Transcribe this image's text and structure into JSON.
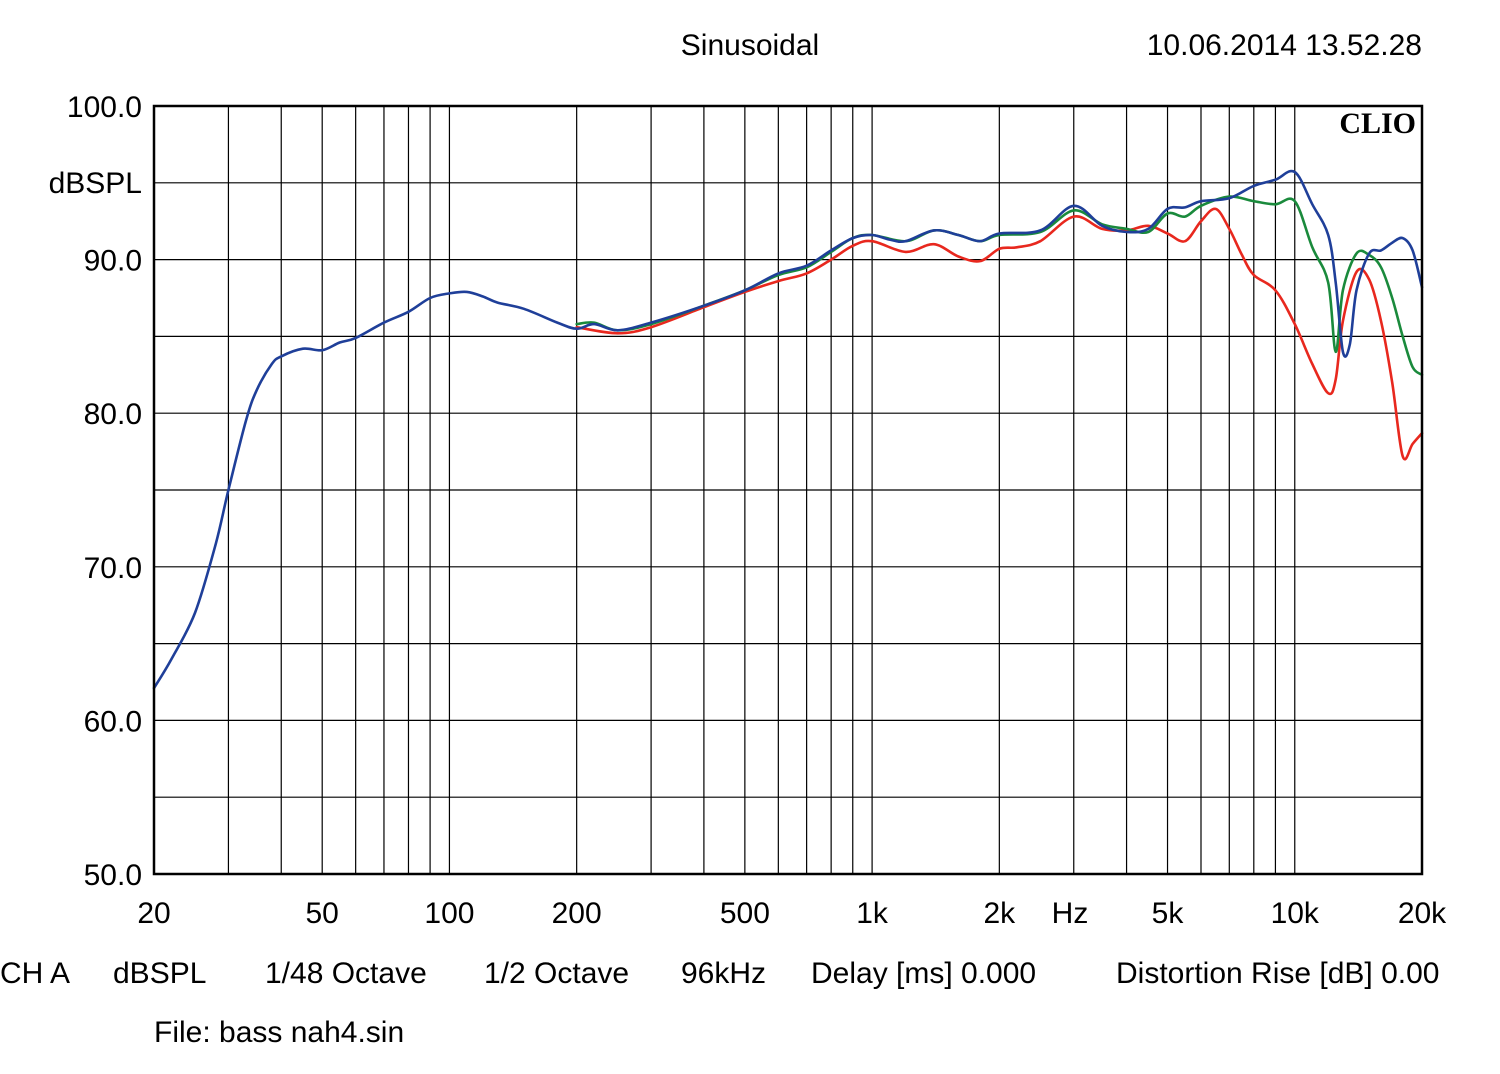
{
  "chart_data": {
    "type": "line",
    "title": "Sinusoidal",
    "timestamp": "10.06.2014 13.52.28",
    "logo": "CLIO",
    "xscale": "log",
    "xlim": [
      20,
      20000
    ],
    "ylim": [
      50,
      100
    ],
    "ylabel": "dBSPL",
    "xunit": "Hz",
    "grid": true,
    "y_ticks": [
      "100.0",
      "90.0",
      "80.0",
      "70.0",
      "60.0",
      "50.0"
    ],
    "y_tick_values": [
      100,
      90,
      80,
      70,
      60,
      50
    ],
    "x_ticks": [
      "20",
      "50",
      "100",
      "200",
      "500",
      "1k",
      "2k",
      "5k",
      "10k",
      "20k"
    ],
    "x_tick_values": [
      20,
      50,
      100,
      200,
      500,
      1000,
      2000,
      5000,
      10000,
      20000
    ],
    "series": [
      {
        "color": "#e8281e",
        "x": [
          200,
          250,
          300,
          400,
          500,
          600,
          700,
          800,
          900,
          1000,
          1200,
          1400,
          1600,
          1800,
          2000,
          2200,
          2500,
          3000,
          3500,
          4000,
          4500,
          5000,
          5500,
          6000,
          6500,
          7000,
          7500,
          8000,
          9000,
          10000,
          11000,
          12000,
          12500,
          13000,
          14000,
          15000,
          16000,
          17000,
          18000,
          19000,
          20000
        ],
        "y": [
          85.6,
          85.2,
          85.6,
          86.9,
          87.9,
          88.6,
          89.1,
          90.0,
          90.9,
          91.2,
          90.5,
          91.0,
          90.2,
          89.9,
          90.7,
          90.8,
          91.2,
          92.8,
          92.0,
          91.9,
          92.2,
          91.7,
          91.2,
          92.5,
          93.3,
          92.0,
          90.3,
          89.0,
          88.0,
          85.8,
          83.2,
          81.3,
          82.2,
          86.0,
          89.2,
          88.7,
          86.0,
          82.0,
          77.2,
          78.0,
          78.7
        ]
      },
      {
        "color": "#1a8a3c",
        "x": [
          200,
          220,
          250,
          300,
          400,
          500,
          600,
          700,
          800,
          900,
          1000,
          1200,
          1400,
          1600,
          1800,
          2000,
          2500,
          3000,
          3500,
          4000,
          4500,
          5000,
          5500,
          6000,
          7000,
          8000,
          9000,
          10000,
          11000,
          12000,
          12500,
          13000,
          14000,
          15000,
          16000,
          17000,
          18000,
          19000,
          20000
        ],
        "y": [
          85.8,
          85.9,
          85.4,
          85.8,
          87.0,
          88.0,
          89.0,
          89.5,
          90.5,
          91.4,
          91.6,
          91.2,
          91.9,
          91.6,
          91.2,
          91.6,
          91.8,
          93.2,
          92.3,
          92.0,
          91.8,
          93.0,
          92.8,
          93.5,
          94.1,
          93.8,
          93.6,
          93.8,
          90.8,
          88.5,
          84.0,
          88.0,
          90.4,
          90.3,
          89.5,
          87.5,
          85.0,
          83.0,
          82.5
        ]
      },
      {
        "color": "#1f3f99",
        "x": [
          20,
          22,
          25,
          28,
          30,
          33,
          35,
          38,
          40,
          45,
          50,
          55,
          60,
          70,
          80,
          90,
          100,
          110,
          120,
          130,
          150,
          180,
          200,
          220,
          250,
          300,
          400,
          500,
          600,
          700,
          800,
          900,
          1000,
          1100,
          1200,
          1400,
          1600,
          1800,
          2000,
          2500,
          3000,
          3500,
          4000,
          4500,
          5000,
          5500,
          6000,
          7000,
          8000,
          9000,
          10000,
          11000,
          12000,
          12500,
          13000,
          13500,
          14000,
          15000,
          16000,
          17000,
          18000,
          19000,
          20000
        ],
        "y": [
          62.1,
          64.0,
          67.0,
          71.5,
          75.0,
          79.5,
          81.5,
          83.2,
          83.7,
          84.2,
          84.1,
          84.6,
          84.9,
          85.9,
          86.6,
          87.5,
          87.8,
          87.9,
          87.6,
          87.2,
          86.8,
          85.9,
          85.5,
          85.8,
          85.4,
          85.9,
          87.0,
          88.0,
          89.1,
          89.6,
          90.6,
          91.4,
          91.6,
          91.3,
          91.2,
          91.9,
          91.6,
          91.2,
          91.7,
          91.9,
          93.5,
          92.2,
          91.8,
          92.0,
          93.3,
          93.4,
          93.8,
          94.0,
          94.8,
          95.2,
          95.7,
          93.6,
          91.6,
          88.5,
          84.0,
          84.5,
          88.0,
          90.4,
          90.6,
          91.1,
          91.4,
          90.6,
          88.2
        ]
      }
    ]
  },
  "footer": {
    "line1": [
      "CH A",
      "dBSPL",
      "1/48 Octave",
      "1/2 Octave",
      "96kHz",
      "Delay [ms] 0.000",
      "Distortion Rise [dB] 0.00"
    ],
    "file": "File: bass nah4.sin"
  }
}
